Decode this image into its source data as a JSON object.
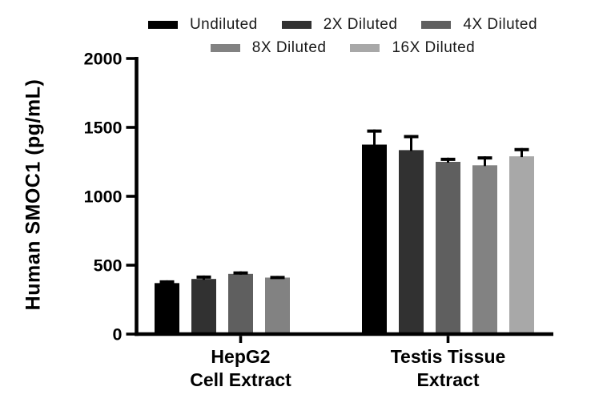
{
  "chart_data": {
    "type": "bar",
    "title": "",
    "ylabel": "Human SMOC1 (pg/mL)",
    "xlabel": "",
    "ylim": [
      0,
      2000
    ],
    "yticks": [
      0,
      500,
      1000,
      1500,
      2000
    ],
    "grid": false,
    "legend_position": "top",
    "legend_rows": [
      [
        0,
        1,
        2
      ],
      [
        3,
        4
      ]
    ],
    "error_bar_style": "upper-only",
    "background_color": "#ffffff",
    "axis_color": "#000000",
    "categories": [
      [
        "HepG2",
        "Cell Extract"
      ],
      [
        "Testis Tissue",
        "Extract"
      ]
    ],
    "series": [
      {
        "name": "Undiluted",
        "color": "#000000",
        "values": [
          370,
          1375
        ],
        "errors": [
          20,
          110
        ]
      },
      {
        "name": "2X Diluted",
        "color": "#313131",
        "values": [
          400,
          1335
        ],
        "errors": [
          25,
          110
        ]
      },
      {
        "name": "4X Diluted",
        "color": "#5f5f5f",
        "values": [
          437,
          1250
        ],
        "errors": [
          18,
          30
        ]
      },
      {
        "name": "8X Diluted",
        "color": "#828282",
        "values": [
          410,
          1225
        ],
        "errors": [
          12,
          65
        ]
      },
      {
        "name": "16X Diluted",
        "color": "#a8a8a8",
        "values": [
          null,
          1290
        ],
        "errors": [
          null,
          60
        ]
      }
    ]
  }
}
